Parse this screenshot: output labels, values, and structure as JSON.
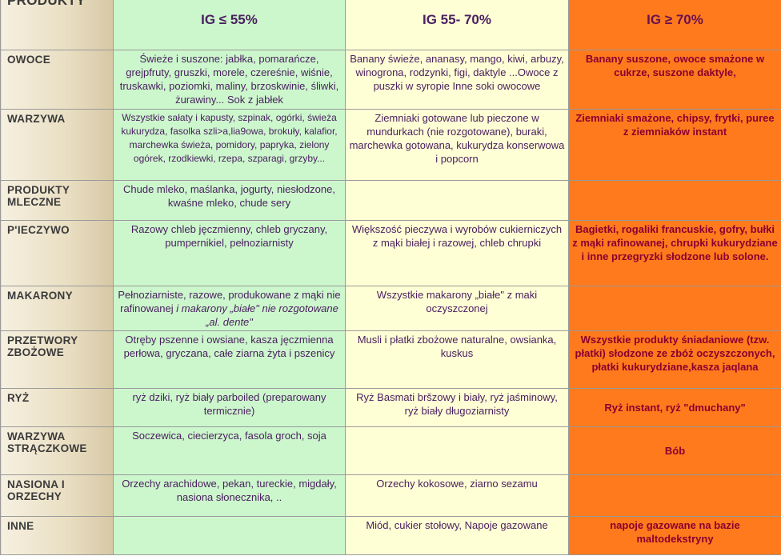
{
  "header": {
    "col0": "PRODUKTY",
    "col1": "IG ≤ 55%",
    "col2": "IG 55- 70%",
    "col3": "IG ≥ 70%"
  },
  "rows": [
    {
      "label": "OWOCE",
      "low": "Świeże i suszone: jabłka, pomarańcze, grejpfruty, gruszki, morele, czereśnie, wiśnie, truskawki, poziomki, maliny, brzoskwinie, śliwki, żurawiny... Sok z jabłek",
      "mid": "Banany świeże, ananasy, mango, kiwi, arbuzy, winogrona, rodzynki, figi, daktyle ...Owoce z puszki w syropie Inne soki owocowe",
      "high": "Banany suszone, owoce smażone w cukrze, suszone daktyle,"
    },
    {
      "label": "WARZYWA",
      "low": "Wszystkie sałaty i kapusty, szpinak, ogórki, świeża kukurydza, fasolka szli>a,lia9owa, brokuły, kalafior, marchewka świeża, pomidory, papryka, zielony ogórek, rzodkiewki, rzepa, szparagi, grzyby...",
      "mid": "Ziemniaki gotowane lub pieczone w mundurkach (nie rozgotowane), buraki, marchewka gotowana, kukurydza konserwowa i popcorn",
      "high": "Ziemniaki smażone, chipsy, frytki, puree z ziemniaków instant"
    },
    {
      "label": "PRODUKTY MLECZNE",
      "low": "Chude mleko, maślanka, jogurty, niesłodzone, kwaśne mleko, chude sery",
      "mid": "",
      "high": ""
    },
    {
      "label": "P'IECZYWO",
      "low": "Razowy chleb jęczmienny, chleb gryczany, pumpernikiel, pełnoziarnisty",
      "mid": "Większość pieczywa i wyrobów cukierniczych z mąki białej i razowej, chleb chrupki",
      "high": "Bagietki, rogaliki francuskie, gofry, bułki z mąki rafinowanej, chrupki kukurydziane i inne przegryzki słodzone lub solone."
    },
    {
      "label": "MAKARONY",
      "low": "Pełnoziarniste, razowe, produkowane z mąki nie rafinowanej",
      "low_italic": "i makarony „białe\" nie rozgotowane „al. dente\"",
      "mid": "Wszystkie makarony „białe\" z maki oczyszczonej",
      "high": ""
    },
    {
      "label": "PRZETWORY ZBOŻOWE",
      "low": "Otręby pszenne i owsiane, kasza jęczmienna perłowa, gryczana, całe ziarna żyta i pszenicy",
      "mid": "Musli i płatki zbożowe naturalne, owsianka, kuskus",
      "high": "Wszystkie produkty śniadaniowe (tzw. płatki) słodzone ze zbóż oczyszczonych, płatki kukurydziane,kasza jaqlana"
    },
    {
      "label": "RYŻ",
      "low": "ryż dziki, ryż biały parboiled (preparowany termicznie)",
      "mid": "Ryż Basmati bršzowy i biały, ryż jaśminowy, ryż biały długoziarnisty",
      "high": "Ryż instant, ryż \"dmuchany\""
    },
    {
      "label": "WARZYWA STRĄCZKOWE",
      "low": "Soczewica, ciecierzyca, fasola groch, soja",
      "mid": "",
      "high": "Bób"
    },
    {
      "label": "NASIONA I ORZECHY",
      "low": "Orzechy arachidowe, pekan, tureckie, migdały, nasiona słonecznika, ..",
      "mid": "Orzechy kokosowe, ziarno sezamu",
      "high": ""
    },
    {
      "label": "INNE",
      "low": "",
      "mid": "Miód, cukier stołowy, Napoje gazowane",
      "high": "napoje gazowane na bazie maltodekstryny"
    }
  ],
  "colors": {
    "low": "#ccf7cc",
    "mid": "#ffffd6",
    "high": "#ff7a1c"
  }
}
